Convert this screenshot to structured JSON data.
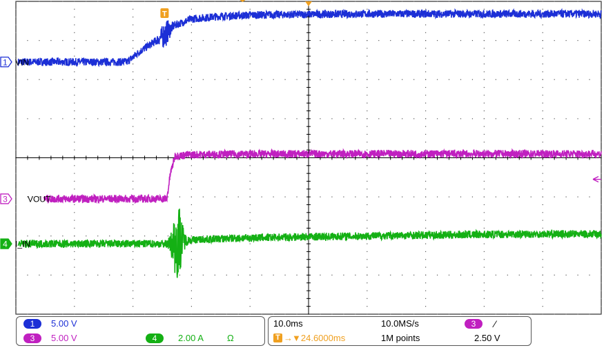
{
  "colors": {
    "ch1": "#1c2fd6",
    "ch3": "#c020c0",
    "ch4": "#14b014",
    "trigger": "#f0a020",
    "grid": "#000000"
  },
  "chart_data": {
    "type": "line",
    "title": "",
    "xlabel": "",
    "ylabel": "",
    "time_per_div_ms": 10,
    "xlim_ms": [
      -50,
      50
    ],
    "ylim_div": [
      -4,
      4
    ],
    "grid": true,
    "series": [
      {
        "name": "VIN",
        "channel": "1",
        "icon": "channel-1-marker-icon",
        "x": [
          -50,
          -31,
          -29,
          -25,
          -23,
          -20,
          -15,
          -10,
          0,
          10,
          20,
          30,
          40,
          50
        ],
        "y": [
          2.45,
          2.45,
          2.7,
          3.1,
          3.38,
          3.55,
          3.62,
          3.65,
          3.67,
          3.68,
          3.68,
          3.68,
          3.68,
          3.68
        ]
      },
      {
        "name": "VOUT",
        "channel": "3",
        "icon": "channel-3-marker-icon",
        "x": [
          -45,
          -24.2,
          -23.6,
          -22.8,
          -20,
          -15,
          0,
          10,
          20,
          30,
          40,
          50
        ],
        "y": [
          -1.05,
          -1.05,
          -0.4,
          0.05,
          0.08,
          0.09,
          0.1,
          0.1,
          0.1,
          0.1,
          0.1,
          0.1
        ]
      },
      {
        "name": "I_IN",
        "channel": "4",
        "icon": "channel-4-marker-icon",
        "x": [
          -50,
          -23,
          -22,
          -21,
          -20,
          -15,
          -10,
          0,
          10,
          20,
          30,
          40,
          50
        ],
        "y": [
          -2.2,
          -2.2,
          -2.1,
          -2.12,
          -2.1,
          -2.07,
          -2.05,
          -2.02,
          -2.0,
          -1.98,
          -1.96,
          -1.95,
          -1.95
        ]
      }
    ],
    "annotations": {
      "trigger_marker": "T",
      "trigger_x_ms": -24.6,
      "trigger_level_div": 0.0
    }
  },
  "status": {
    "ch1": {
      "number": "1",
      "scale": "5.00 V"
    },
    "ch3": {
      "number": "3",
      "scale": "5.00 V"
    },
    "ch4": {
      "number": "4",
      "scale": "2.00 A",
      "unit_symbol": "Ω"
    },
    "horizontal": {
      "time_div": "10.0ms",
      "sample_rate": "10.0MS/s",
      "record": "1M points",
      "trigger_position": "▼24.6000ms"
    },
    "trigger": {
      "source": "3",
      "slope": "⁄",
      "level": "2.50 V"
    }
  }
}
